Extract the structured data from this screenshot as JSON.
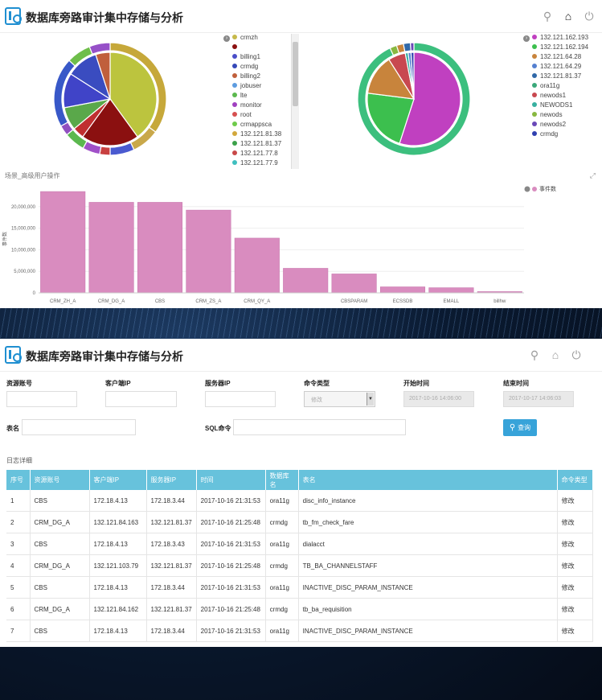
{
  "app": {
    "title": "数据库旁路审计集中存储与分析"
  },
  "legend1": [
    {
      "label": "crmzh",
      "color": "#c6b94a"
    },
    {
      "label": "",
      "color": "#8b1010"
    },
    {
      "label": "billing1",
      "color": "#4a4ec8"
    },
    {
      "label": "crmdg",
      "color": "#3548b8"
    },
    {
      "label": "billing2",
      "color": "#c05f3c"
    },
    {
      "label": "jobuser",
      "color": "#5d9ce0"
    },
    {
      "label": "lte",
      "color": "#5bb84e"
    },
    {
      "label": "monitor",
      "color": "#a040c0"
    },
    {
      "label": "root",
      "color": "#d65050"
    },
    {
      "label": "crmappsca",
      "color": "#6ecb4a"
    },
    {
      "label": "132.121.81.38",
      "color": "#d2a83c"
    },
    {
      "label": "132.121.81.37",
      "color": "#3ba14a"
    },
    {
      "label": "132.121.77.8",
      "color": "#c84848"
    },
    {
      "label": "132.121.77.9",
      "color": "#3fbfbf"
    }
  ],
  "legend2": [
    {
      "label": "132.121.162.193",
      "color": "#c040c0"
    },
    {
      "label": "132.121.162.194",
      "color": "#3cbf4e"
    },
    {
      "label": "132.121.64.28",
      "color": "#c8843c"
    },
    {
      "label": "132.121.64.29",
      "color": "#5580d0"
    },
    {
      "label": "132.121.81.37",
      "color": "#3068a8"
    },
    {
      "label": "ora11g",
      "color": "#3aa87a"
    },
    {
      "label": "newods1",
      "color": "#c84850"
    },
    {
      "label": "NEWODS1",
      "color": "#38b0a0"
    },
    {
      "label": "newods",
      "color": "#88b840"
    },
    {
      "label": "newods2",
      "color": "#6a48b8"
    },
    {
      "label": "crmdg",
      "color": "#3040b0"
    }
  ],
  "pie1": {
    "outer": [
      {
        "value": 35,
        "color": "#c6a83a"
      },
      {
        "value": 8,
        "color": "#c9a84a"
      },
      {
        "value": 7,
        "color": "#4a5ad0"
      },
      {
        "value": 3,
        "color": "#c84040"
      },
      {
        "value": 5,
        "color": "#a050c8"
      },
      {
        "value": 6,
        "color": "#5bb84e"
      },
      {
        "value": 3,
        "color": "#9050c0"
      },
      {
        "value": 20,
        "color": "#3858c8"
      },
      {
        "value": 7,
        "color": "#6ebe4a"
      },
      {
        "value": 6,
        "color": "#9650c8"
      }
    ],
    "inner": [
      {
        "value": 40,
        "color": "#bcc43e"
      },
      {
        "value": 20,
        "color": "#8b1010"
      },
      {
        "value": 4,
        "color": "#c03030"
      },
      {
        "value": 8,
        "color": "#5aa84a"
      },
      {
        "value": 12,
        "color": "#4044c8"
      },
      {
        "value": 11,
        "color": "#3a4cc0"
      },
      {
        "value": 5,
        "color": "#c05f3c"
      }
    ]
  },
  "pie2": {
    "outer": [
      {
        "value": 93,
        "color": "#3cbf7e"
      },
      {
        "value": 2,
        "color": "#88b840"
      },
      {
        "value": 2,
        "color": "#c8843c"
      },
      {
        "value": 2,
        "color": "#3068a8"
      },
      {
        "value": 1,
        "color": "#6a48b8"
      }
    ],
    "inner": [
      {
        "value": 55,
        "color": "#c040c0"
      },
      {
        "value": 22,
        "color": "#3cbf4e"
      },
      {
        "value": 14,
        "color": "#c8843c"
      },
      {
        "value": 6,
        "color": "#c84850"
      },
      {
        "value": 1,
        "color": "#38b0a0"
      },
      {
        "value": 1,
        "color": "#5580d0"
      },
      {
        "value": 1,
        "color": "#3040b0"
      }
    ]
  },
  "bar_section": {
    "title": "场景_高级用户操作"
  },
  "chart_data": {
    "type": "bar",
    "ylabel": "事件数",
    "legend": "事件数",
    "categories": [
      "CRM_ZH_A",
      "CRM_DG_A",
      "CBS",
      "CRM_ZS_A",
      "CRM_QY_A",
      "",
      "CBSPARAM",
      "ECSSDB",
      "EMALL",
      "billhw"
    ],
    "values": [
      23500000,
      21000000,
      21000000,
      19200000,
      12700000,
      5700000,
      4400000,
      1400000,
      1200000,
      300000
    ],
    "yticks": [
      "0",
      "5,000,000",
      "10,000,000",
      "15,000,000",
      "20,000,000"
    ],
    "ylim": [
      0,
      25000000
    ],
    "color": "#d98cbf"
  },
  "form": {
    "account_label": "资源账号",
    "client_ip_label": "客户端IP",
    "server_ip_label": "服务器IP",
    "cmd_type_label": "命令类型",
    "cmd_type_value": "修改",
    "start_label": "开始时间",
    "start_value": "2017-10-16 14:06:00",
    "end_label": "结束时间",
    "end_value": "2017-10-17 14:06:03",
    "table_label": "表名",
    "sql_label": "SQL命令",
    "query_label": "查询"
  },
  "log": {
    "title": "日志详细",
    "columns": [
      "序号",
      "资源账号",
      "客户端IP",
      "服务器IP",
      "时间",
      "数据库名",
      "表名",
      "命令类型"
    ],
    "rows": [
      [
        "1",
        "CBS",
        "172.18.4.13",
        "172.18.3.44",
        "2017-10-16 21:31:53",
        "ora11g",
        "disc_info_instance",
        "修改"
      ],
      [
        "2",
        "CRM_DG_A",
        "132.121.84.163",
        "132.121.81.37",
        "2017-10-16 21:25:48",
        "crmdg",
        "tb_fm_check_fare",
        "修改"
      ],
      [
        "3",
        "CBS",
        "172.18.4.13",
        "172.18.3.43",
        "2017-10-16 21:31:53",
        "ora11g",
        "dialacct",
        "修改"
      ],
      [
        "4",
        "CRM_DG_A",
        "132.121.103.79",
        "132.121.81.37",
        "2017-10-16 21:25:48",
        "crmdg",
        "TB_BA_CHANNELSTAFF",
        "修改"
      ],
      [
        "5",
        "CBS",
        "172.18.4.13",
        "172.18.3.44",
        "2017-10-16 21:31:53",
        "ora11g",
        "INACTIVE_DISC_PARAM_INSTANCE",
        "修改"
      ],
      [
        "6",
        "CRM_DG_A",
        "132.121.84.162",
        "132.121.81.37",
        "2017-10-16 21:25:48",
        "crmdg",
        "tb_ba_requisition",
        "修改"
      ],
      [
        "7",
        "CBS",
        "172.18.4.13",
        "172.18.3.44",
        "2017-10-16 21:31:53",
        "ora11g",
        "INACTIVE_DISC_PARAM_INSTANCE",
        "修改"
      ]
    ]
  },
  "icons": [
    "search-icon",
    "home-icon",
    "power-icon",
    "query-search-icon",
    "expand-icon",
    "legend-toggle-icon"
  ]
}
